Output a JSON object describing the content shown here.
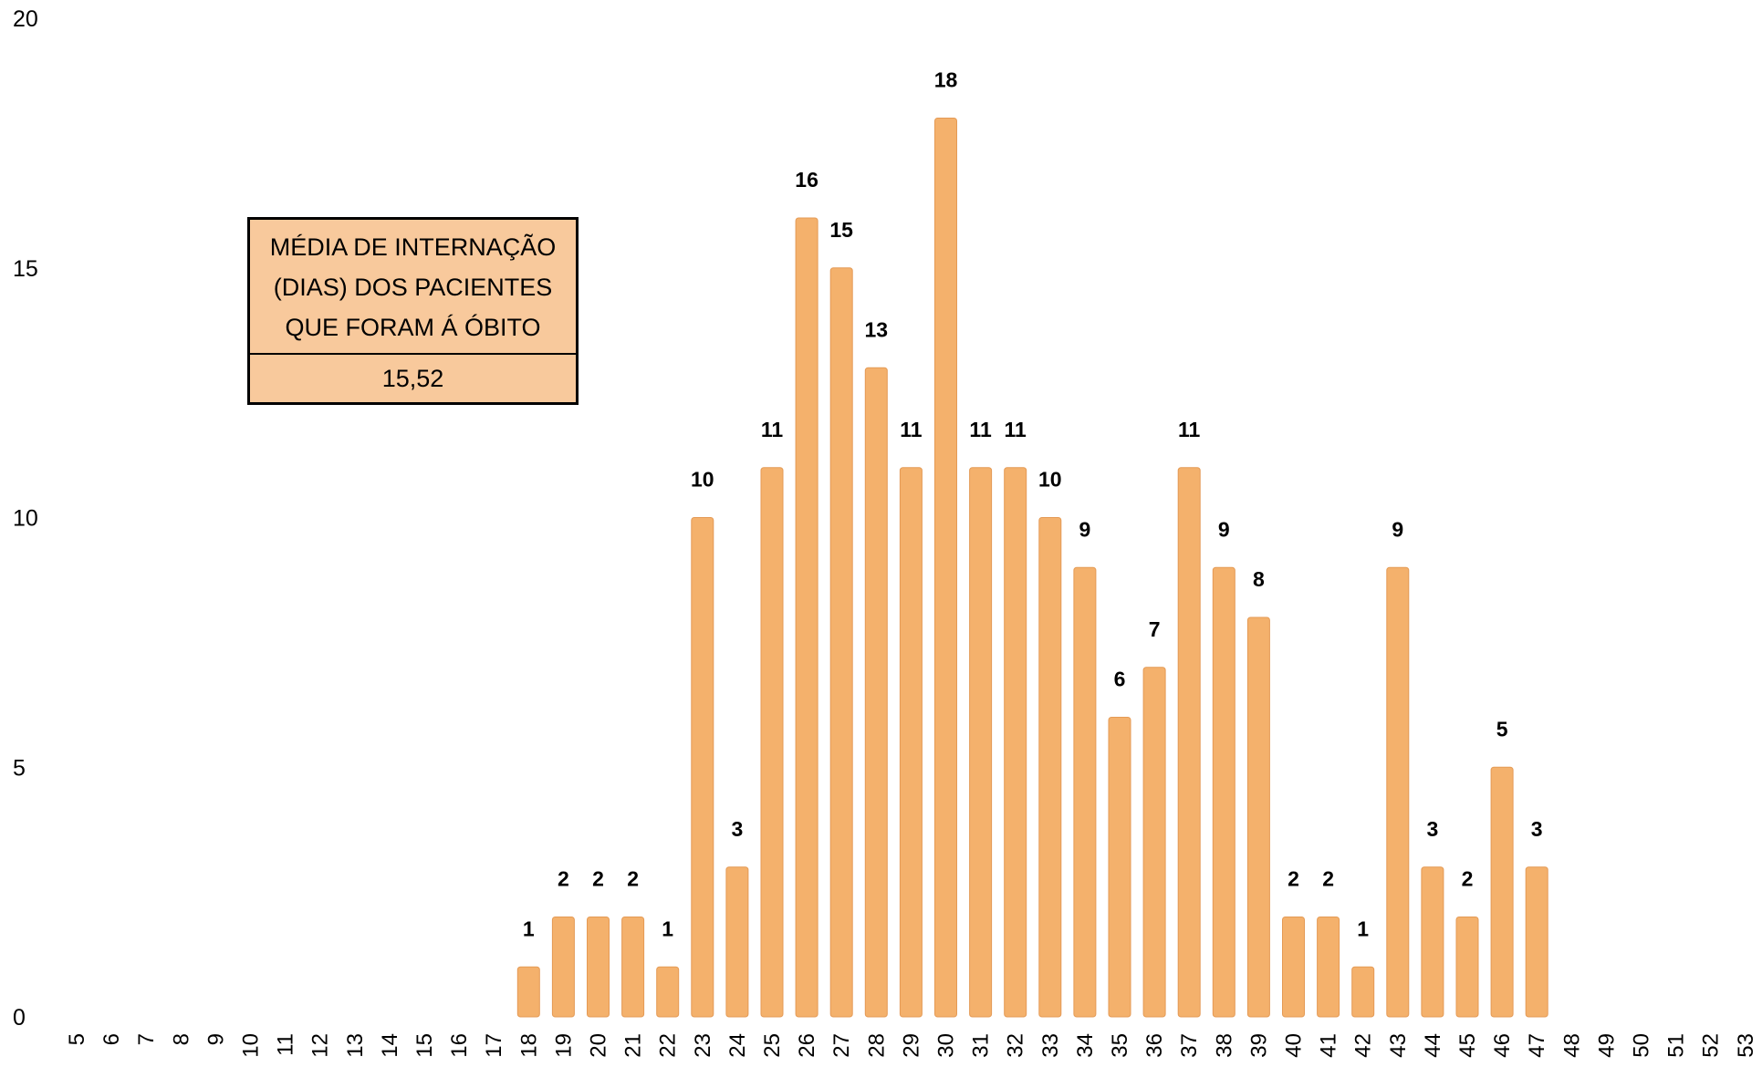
{
  "chart_data": {
    "type": "bar",
    "title": "",
    "xlabel": "",
    "ylabel": "",
    "ylim": [
      0,
      20
    ],
    "yticks": [
      0,
      5,
      10,
      15,
      20
    ],
    "grid": false,
    "bar_color": "#F4B16C",
    "categories": [
      "5",
      "6",
      "7",
      "8",
      "9",
      "10",
      "11",
      "12",
      "13",
      "14",
      "15",
      "16",
      "17",
      "18",
      "19",
      "20",
      "21",
      "22",
      "23",
      "24",
      "25",
      "26",
      "27",
      "28",
      "29",
      "30",
      "31",
      "32",
      "33",
      "34",
      "35",
      "36",
      "37",
      "38",
      "39",
      "40",
      "41",
      "42",
      "43",
      "44",
      "45",
      "46",
      "47",
      "48",
      "49",
      "50",
      "51",
      "52",
      "53"
    ],
    "values": [
      0,
      0,
      0,
      0,
      0,
      0,
      0,
      0,
      0,
      0,
      0,
      0,
      0,
      1,
      2,
      2,
      2,
      1,
      10,
      3,
      11,
      16,
      15,
      13,
      11,
      18,
      11,
      11,
      10,
      9,
      6,
      7,
      11,
      9,
      8,
      2,
      2,
      1,
      9,
      3,
      2,
      5,
      3,
      0,
      0,
      0,
      0,
      0,
      0
    ]
  },
  "info_box": {
    "title": "MÉDIA DE INTERNAÇÃO (DIAS) DOS PACIENTES QUE FORAM Á ÓBITO",
    "value": "15,52",
    "background": "#F8C99C"
  }
}
